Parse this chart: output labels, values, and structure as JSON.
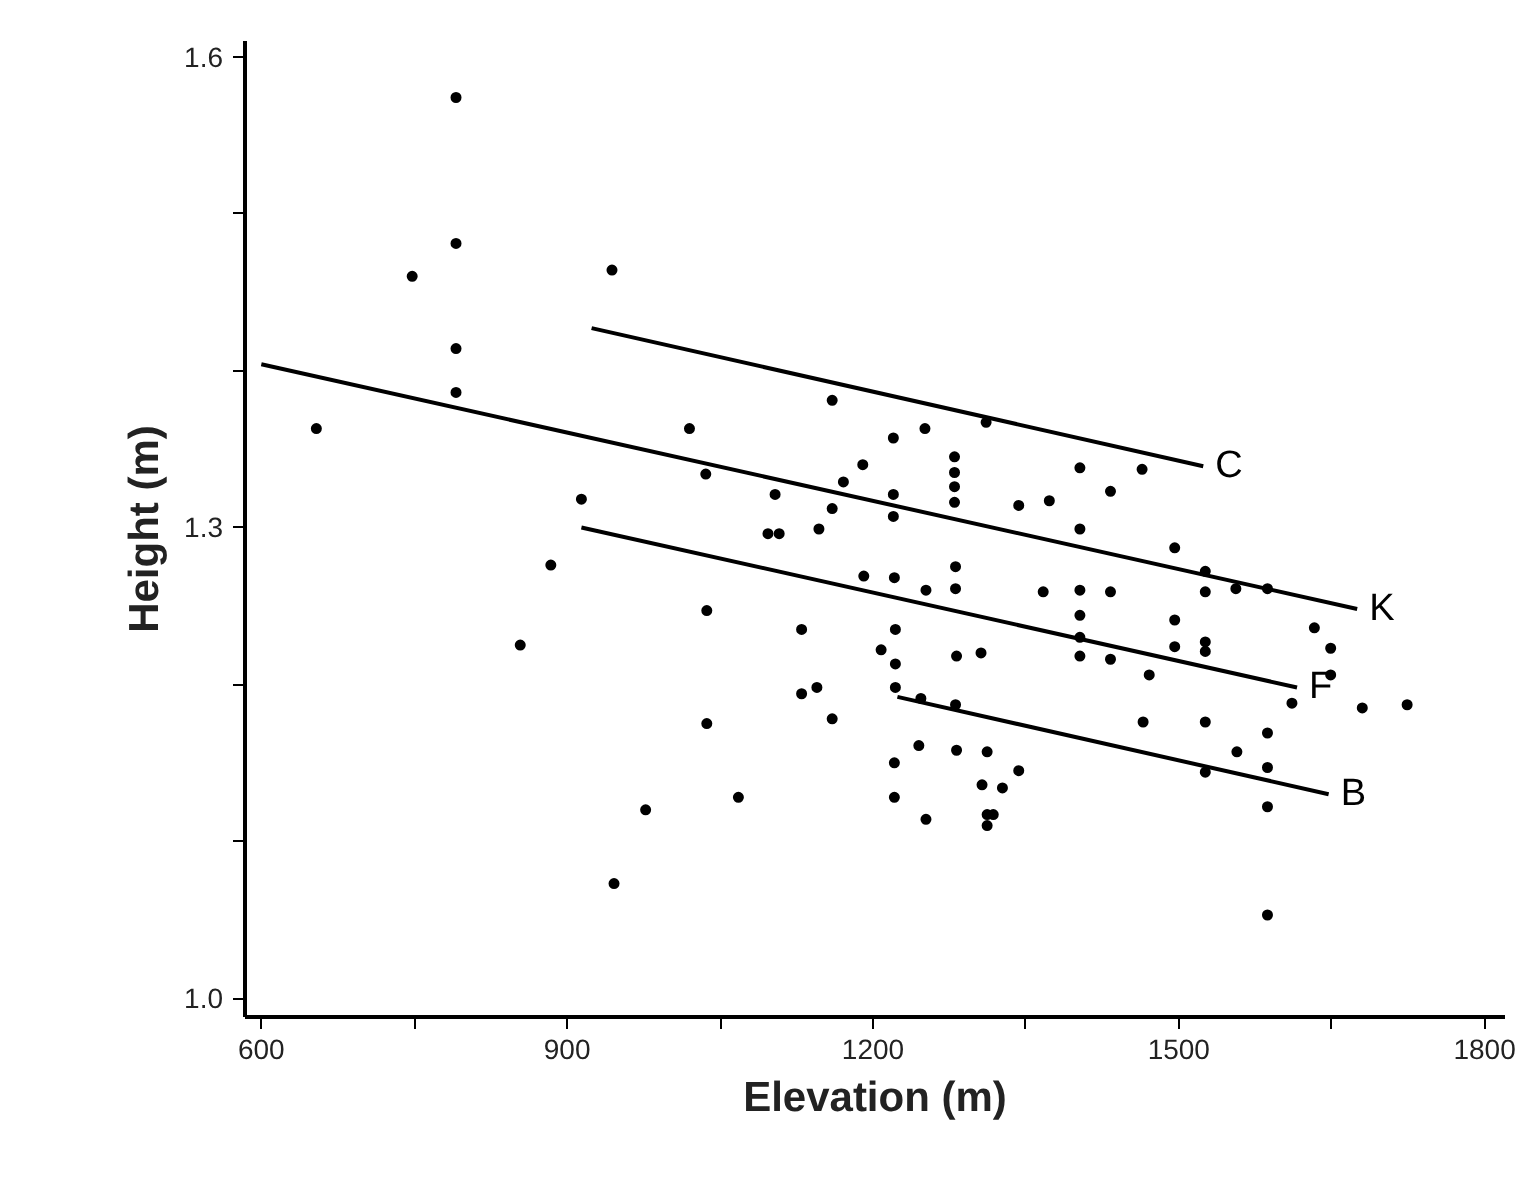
{
  "chart_data": {
    "type": "scatter",
    "xlabel": "Elevation (m)",
    "ylabel": "Height (m)",
    "xlim": [
      584,
      1820
    ],
    "ylim": [
      0.988,
      1.61
    ],
    "xticks": [
      600,
      {
        "value": 750,
        "label": null
      },
      900,
      {
        "value": 1050,
        "label": null
      },
      1200,
      {
        "value": 1350,
        "label": null
      },
      1500,
      {
        "value": 1650,
        "label": null
      },
      1800
    ],
    "yticks": [
      {
        "value": 1.0,
        "label": "1.0"
      },
      {
        "value": 1.1,
        "label": null
      },
      {
        "value": 1.2,
        "label": null
      },
      1.3,
      {
        "value": 1.4,
        "label": null
      },
      {
        "value": 1.5,
        "label": null
      },
      1.6
    ],
    "grid": false,
    "legend": false,
    "series": [
      {
        "marker": "circle",
        "color": "#000000",
        "x": [
          791,
          791,
          748,
          944,
          791,
          791,
          654,
          1020,
          1036,
          914,
          1104,
          1097,
          1108,
          884,
          1037,
          854,
          1037,
          1068,
          977,
          946,
          1160,
          1220,
          1251,
          1311,
          1190,
          1280,
          1280,
          1280,
          1280,
          1171,
          1220,
          1160,
          1220,
          1147,
          1343,
          1373,
          1403,
          1464,
          1433,
          1403,
          1496,
          1526,
          1556,
          1587,
          1191,
          1221,
          1252,
          1281,
          1281,
          1367,
          1403,
          1433,
          1526,
          1130,
          1222,
          1208,
          1222,
          1282,
          1306,
          1403,
          1403,
          1403,
          1433,
          1496,
          1496,
          1526,
          1526,
          1471,
          1633,
          1649,
          1649,
          1611,
          1680,
          1724,
          1130,
          1145,
          1160,
          1222,
          1247,
          1281,
          1465,
          1526,
          1587,
          1557,
          1587,
          1526,
          1245,
          1282,
          1312,
          1221,
          1343,
          1307,
          1327,
          1221,
          1252,
          1312,
          1318,
          1312,
          1587,
          1587
        ],
        "values": [
          1.574,
          1.481,
          1.46,
          1.464,
          1.414,
          1.386,
          1.363,
          1.363,
          1.334,
          1.318,
          1.321,
          1.296,
          1.296,
          1.276,
          1.247,
          1.225,
          1.175,
          1.128,
          1.12,
          1.073,
          1.381,
          1.357,
          1.363,
          1.367,
          1.34,
          1.345,
          1.335,
          1.326,
          1.316,
          1.329,
          1.321,
          1.312,
          1.307,
          1.299,
          1.314,
          1.317,
          1.338,
          1.337,
          1.323,
          1.299,
          1.287,
          1.272,
          1.261,
          1.261,
          1.269,
          1.268,
          1.26,
          1.275,
          1.261,
          1.259,
          1.26,
          1.259,
          1.259,
          1.235,
          1.235,
          1.222,
          1.213,
          1.218,
          1.22,
          1.244,
          1.23,
          1.218,
          1.216,
          1.241,
          1.224,
          1.227,
          1.221,
          1.206,
          1.236,
          1.223,
          1.206,
          1.188,
          1.185,
          1.187,
          1.194,
          1.198,
          1.178,
          1.198,
          1.191,
          1.187,
          1.176,
          1.176,
          1.169,
          1.157,
          1.147,
          1.144,
          1.161,
          1.158,
          1.157,
          1.15,
          1.145,
          1.136,
          1.134,
          1.128,
          1.114,
          1.117,
          1.117,
          1.11,
          1.122,
          1.053
        ]
      },
      {
        "type": "line",
        "name": "C",
        "color": "#000000",
        "x": [
          924,
          1524
        ],
        "values": [
          1.427,
          1.339
        ]
      },
      {
        "type": "line",
        "name": "K",
        "color": "#000000",
        "x": [
          600,
          1675
        ],
        "values": [
          1.404,
          1.248
        ]
      },
      {
        "type": "line",
        "name": "F",
        "color": "#000000",
        "x": [
          914,
          1616
        ],
        "values": [
          1.3,
          1.198
        ]
      },
      {
        "type": "line",
        "name": "B",
        "color": "#000000",
        "x": [
          1224,
          1647
        ],
        "values": [
          1.192,
          1.13
        ]
      }
    ]
  }
}
